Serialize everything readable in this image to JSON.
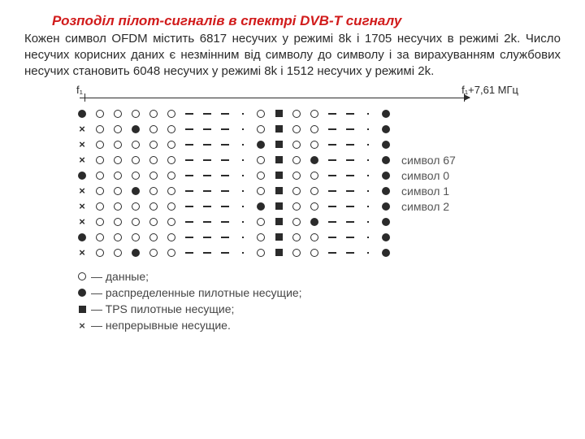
{
  "title": "Розподіл пілот-сигналів в спектрі DVB-T сигналу",
  "paragraph": "Кожен символ OFDM містить 6817 несучих у режимі 8k і 1705 несучих в режимі 2k. Число несучих корисних даних є незмінним від символу до символу і за вирахуванням службових несучих становить 6048 несучих у режимі 8k і 1512 несучих у режимі 2k.",
  "axis": {
    "left_label": "f₁",
    "right_label": "f₁+7,61 МГц"
  },
  "symbols": {
    "o": "circ-o",
    "f": "circ-f",
    "s": "sq-f",
    "x": "x-mark",
    "-": "dash",
    ".": "dot"
  },
  "rows": [
    {
      "pattern": "f o o o o o - - - . o s o o - - . f",
      "label": ""
    },
    {
      "pattern": "x o o f o o - - - . o s o o - - . f",
      "label": ""
    },
    {
      "pattern": "x o o o o o - - - . f s o o - - . f",
      "label": ""
    },
    {
      "pattern": "x o o o o o - - - . o s o f - - . f",
      "label": "символ 67"
    },
    {
      "pattern": "f o o o o o - - - . o s o o - - . f",
      "label": "символ 0"
    },
    {
      "pattern": "x o o f o o - - - . o s o o - - . f",
      "label": "символ 1"
    },
    {
      "pattern": "x o o o o o - - - . f s o o - - . f",
      "label": "символ 2"
    },
    {
      "pattern": "x o o o o o - - - . o s o f - - . f",
      "label": ""
    },
    {
      "pattern": "f o o o o o - - - . o s o o - - . f",
      "label": ""
    },
    {
      "pattern": "x o o f o o - - - . o s o o - - . f",
      "label": ""
    }
  ],
  "legend": [
    {
      "sym": "o",
      "text": "— данные;"
    },
    {
      "sym": "f",
      "text": "— распределенные пилотные несущие;"
    },
    {
      "sym": "s",
      "text": "— TPS пилотные несущие;"
    },
    {
      "sym": "x",
      "text": "— непрерывные несущие."
    }
  ]
}
